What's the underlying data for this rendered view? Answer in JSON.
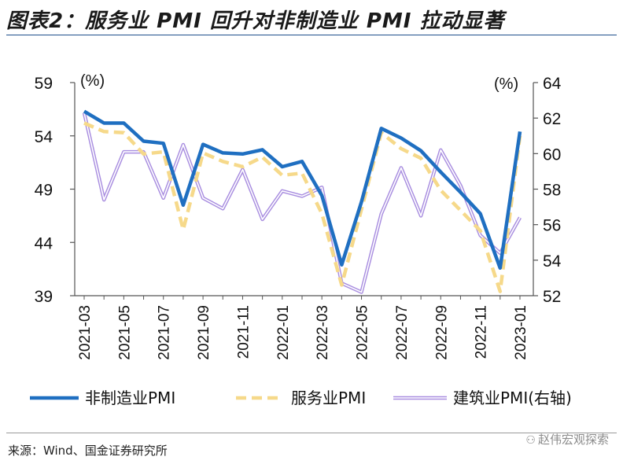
{
  "title": "图表2：服务业 PMI 回升对非制造业 PMI 拉动显著",
  "source": "来源：Wind、国金证券研究所",
  "watermark": "赵伟宏观探索",
  "chart_data": {
    "type": "line",
    "title": "",
    "y_left": {
      "label": "(%)",
      "min": 39,
      "max": 59,
      "ticks": [
        39,
        44,
        49,
        54,
        59
      ]
    },
    "y_right": {
      "label": "(%)",
      "min": 52,
      "max": 64,
      "ticks": [
        52,
        54,
        56,
        58,
        60,
        62,
        64
      ]
    },
    "x": [
      "2021-03",
      "2021-04",
      "2021-05",
      "2021-06",
      "2021-07",
      "2021-08",
      "2021-09",
      "2021-10",
      "2021-11",
      "2021-12",
      "2022-01",
      "2022-02",
      "2022-03",
      "2022-04",
      "2022-05",
      "2022-06",
      "2022-07",
      "2022-08",
      "2022-09",
      "2022-10",
      "2022-11",
      "2022-12",
      "2023-01"
    ],
    "x_tick_labels": [
      "2021-03",
      "2021-05",
      "2021-07",
      "2021-09",
      "2021-11",
      "2022-01",
      "2022-03",
      "2022-05",
      "2022-07",
      "2022-09",
      "2022-11",
      "2023-01"
    ],
    "series": [
      {
        "name": "非制造业PMI",
        "axis": "left",
        "color": "#1f6fc1",
        "dash": "solid",
        "values": [
          56.3,
          55.2,
          55.2,
          53.5,
          53.3,
          47.5,
          53.2,
          52.4,
          52.3,
          52.7,
          51.1,
          51.6,
          48.4,
          41.9,
          47.8,
          54.7,
          53.8,
          52.6,
          50.6,
          48.7,
          46.7,
          41.6,
          54.4
        ]
      },
      {
        "name": "服务业PMI",
        "axis": "left",
        "color": "#f6d98a",
        "dash": "dashed",
        "values": [
          55.2,
          54.4,
          54.3,
          52.3,
          52.5,
          45.2,
          52.4,
          51.6,
          51.1,
          52.0,
          50.3,
          50.5,
          46.7,
          40.0,
          47.1,
          54.3,
          52.8,
          51.9,
          48.9,
          47.0,
          45.1,
          39.4,
          54.0
        ]
      },
      {
        "name": "建筑业PMI(右轴)",
        "axis": "right",
        "color": "#a98ee0",
        "dash": "solid-double",
        "values": [
          62.3,
          57.4,
          60.1,
          60.1,
          57.5,
          60.5,
          57.5,
          56.9,
          59.1,
          56.3,
          57.9,
          57.6,
          58.1,
          52.7,
          52.2,
          56.6,
          59.2,
          56.5,
          60.2,
          58.2,
          55.4,
          54.4,
          56.4
        ]
      }
    ],
    "legend": {
      "position": "bottom",
      "entries": [
        "非制造业PMI",
        "服务业PMI",
        "建筑业PMI(右轴)"
      ]
    }
  }
}
